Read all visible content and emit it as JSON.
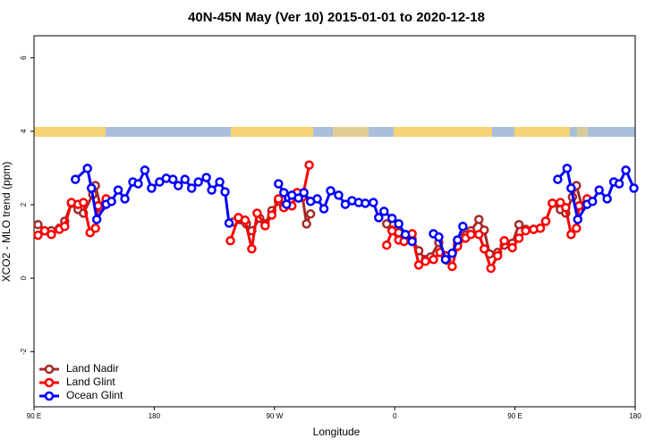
{
  "chart_data": {
    "type": "line",
    "title": "40N-45N May (Ver 10)   2015-01-01 to 2020-12-18",
    "x_label": "Longitude",
    "y_label": "XCO2 - MLO trend (ppm)",
    "xlim": [
      90,
      540
    ],
    "xticks": [
      {
        "value": 90,
        "label": "90 E"
      },
      {
        "value": 180,
        "label": "180"
      },
      {
        "value": 270,
        "label": "90 W"
      },
      {
        "value": 360,
        "label": "0"
      },
      {
        "value": 450,
        "label": "90 E"
      },
      {
        "value": 540,
        "label": "180"
      }
    ],
    "ylim": [
      -3.5,
      6.6
    ],
    "yticks": [
      -2,
      0,
      2,
      4,
      6
    ],
    "legend": "bottomleft",
    "series": [
      {
        "name": "Land Nadir",
        "color": "#a52a2a",
        "x": [
          93,
          98,
          103,
          109,
          113,
          118,
          123,
          127,
          134,
          136,
          140,
          null,
          239,
          249,
          253,
          259,
          263,
          268,
          273,
          277,
          283,
          287,
          291,
          294,
          297,
          null,
          354,
          358,
          363,
          373,
          378,
          383,
          387,
          393,
          399,
          407,
          413,
          417,
          423,
          427,
          431,
          437,
          442,
          448,
          453,
          458,
          464,
          469,
          473,
          478,
          484,
          488,
          493,
          496,
          500
        ],
        "values": [
          1.46,
          1.29,
          1.29,
          1.36,
          1.55,
          2.04,
          1.87,
          1.77,
          2.28,
          2.52,
          1.92,
          null,
          1.53,
          1.48,
          1.29,
          1.63,
          1.48,
          1.84,
          2.09,
          1.94,
          1.97,
          2.33,
          2.21,
          1.48,
          1.75,
          null,
          1.48,
          1.31,
          1.24,
          1.07,
          0.75,
          0.51,
          0.58,
          0.97,
          0.49,
          0.95,
          1.17,
          1.29,
          1.6,
          1.31,
          0.66,
          0.7,
          0.9,
          0.95,
          1.46,
          1.33,
          1.33,
          1.36,
          1.55,
          2.04,
          1.87,
          1.77,
          2.21,
          2.52,
          1.97
        ]
      },
      {
        "name": "Land Glint",
        "color": "#ff0000",
        "x": [
          93,
          98,
          103,
          109,
          113,
          118,
          123,
          127,
          132,
          136,
          138,
          144,
          null,
          237,
          243,
          248,
          253,
          257,
          263,
          268,
          273,
          277,
          283,
          287,
          291,
          296,
          null,
          354,
          358,
          363,
          367,
          373,
          378,
          383,
          389,
          394,
          398,
          403,
          407,
          413,
          417,
          423,
          427,
          432,
          437,
          442,
          448,
          453,
          458,
          464,
          469,
          473,
          478,
          484,
          488,
          492,
          496,
          498,
          504
        ],
        "values": [
          1.17,
          1.29,
          1.19,
          1.33,
          1.41,
          2.06,
          2.01,
          2.06,
          1.24,
          1.36,
          1.97,
          2.16,
          null,
          1.02,
          1.65,
          1.58,
          0.8,
          1.77,
          1.43,
          1.72,
          2.16,
          1.92,
          1.97,
          2.33,
          2.21,
          3.08,
          null,
          0.9,
          1.29,
          1.04,
          1.0,
          1.21,
          0.36,
          0.46,
          0.51,
          0.7,
          0.61,
          0.32,
          0.87,
          1.09,
          1.19,
          1.19,
          0.8,
          0.27,
          0.61,
          1.02,
          0.83,
          1.09,
          1.29,
          1.33,
          1.36,
          1.55,
          2.04,
          2.06,
          1.92,
          1.19,
          1.36,
          1.97,
          2.16
        ]
      },
      {
        "name": "Ocean Glint",
        "color": "#0000ff",
        "x": [
          121,
          130,
          133,
          137,
          144,
          148,
          153,
          158,
          164,
          168,
          173,
          178,
          184,
          189,
          194,
          198,
          203,
          208,
          213,
          219,
          223,
          229,
          233,
          236,
          null,
          273,
          277,
          279,
          283,
          288,
          292,
          297,
          302,
          307,
          312,
          318,
          323,
          328,
          333,
          338,
          344,
          348,
          352,
          358,
          363,
          368,
          373,
          null,
          389,
          393,
          398,
          403,
          407,
          411,
          null,
          482,
          489,
          492,
          497,
          504,
          508,
          513,
          519,
          524,
          528,
          533,
          539
        ],
        "values": [
          2.69,
          2.99,
          2.45,
          1.6,
          2.01,
          2.09,
          2.4,
          2.16,
          2.62,
          2.57,
          2.94,
          2.45,
          2.62,
          2.72,
          2.69,
          2.52,
          2.69,
          2.45,
          2.62,
          2.74,
          2.4,
          2.62,
          2.35,
          1.5,
          null,
          2.57,
          2.33,
          2.01,
          2.26,
          2.18,
          2.33,
          2.09,
          2.16,
          1.89,
          2.38,
          2.26,
          2.01,
          2.11,
          2.06,
          2.04,
          2.06,
          1.65,
          1.82,
          1.63,
          1.48,
          1.19,
          1.0,
          null,
          1.21,
          1.12,
          0.51,
          0.68,
          1.04,
          1.41,
          null,
          2.69,
          2.99,
          2.45,
          1.6,
          2.01,
          2.09,
          2.4,
          2.16,
          2.62,
          2.57,
          2.94,
          2.45
        ]
      }
    ]
  }
}
